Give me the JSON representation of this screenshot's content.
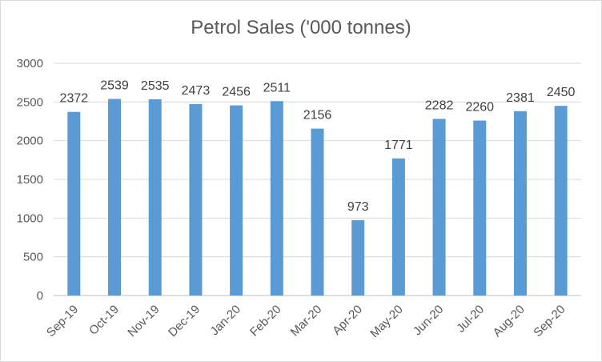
{
  "chart_data": {
    "type": "bar",
    "title": "Petrol Sales ('000 tonnes)",
    "categories": [
      "Sep-19",
      "Oct-19",
      "Nov-19",
      "Dec-19",
      "Jan-20",
      "Feb-20",
      "Mar-20",
      "Apr-20",
      "May-20",
      "Jun-20",
      "Jul-20",
      "Aug-20",
      "Sep-20"
    ],
    "values": [
      2372,
      2539,
      2535,
      2473,
      2456,
      2511,
      2156,
      973,
      1771,
      2282,
      2260,
      2381,
      2450
    ],
    "xlabel": "",
    "ylabel": "",
    "ylim": [
      0,
      3000
    ],
    "yticks": [
      0,
      500,
      1000,
      1500,
      2000,
      2500,
      3000
    ],
    "grid": true,
    "legend": "none",
    "bar_color": "#5b9bd5",
    "grid_color": "#d9d9d9",
    "text_color": "#595959"
  }
}
